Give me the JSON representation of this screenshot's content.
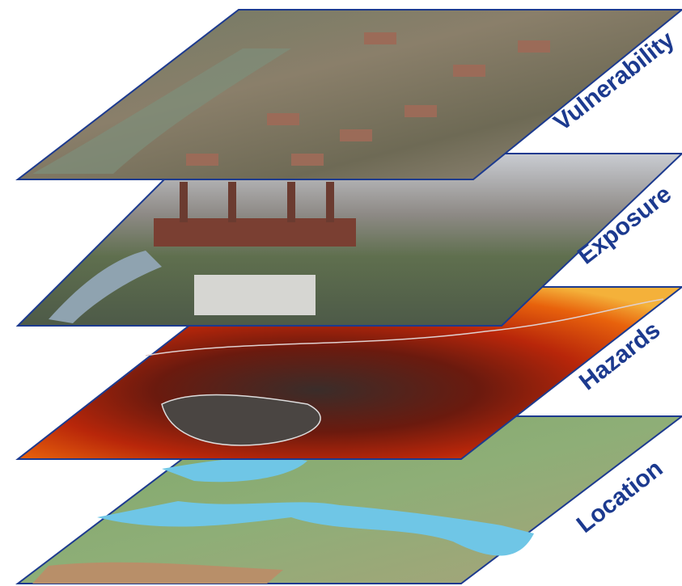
{
  "layers": [
    {
      "label": "Vulnerability"
    },
    {
      "label": "Exposure"
    },
    {
      "label": "Hazards"
    },
    {
      "label": "Location"
    }
  ]
}
